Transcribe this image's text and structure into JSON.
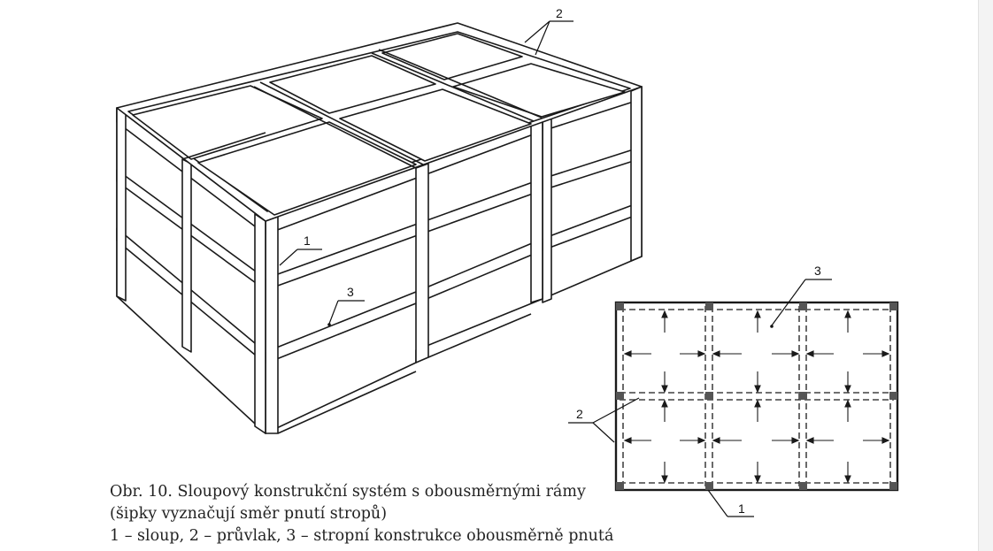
{
  "labels": {
    "column": "1",
    "beam": "2",
    "slab": "3"
  },
  "caption": {
    "line1": "Obr. 10. Sloupový konstrukční systém s obousměrnými rámy",
    "line2": "(šipky vyznačují směr pnutí stropů)",
    "line3": "1 – sloup, 2 – průvlak, 3 – stropní konstrukce obousměrně pnutá"
  },
  "colors": {
    "ink": "#1a1a1a",
    "column_fill": "#555555",
    "edge_strip": "#f3f3f3"
  }
}
